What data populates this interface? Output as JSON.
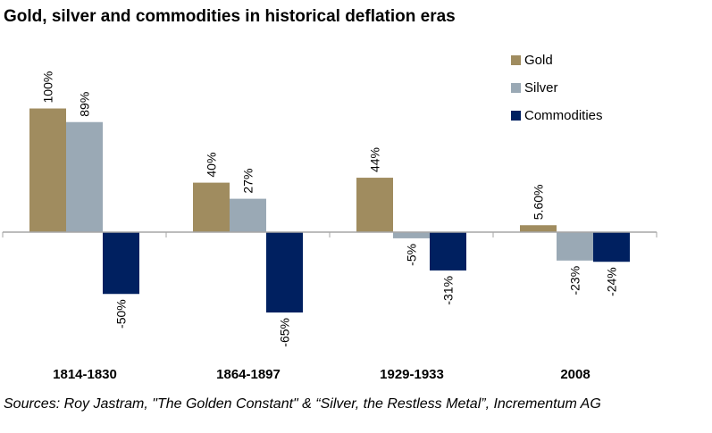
{
  "title": "Gold, silver and commodities in historical deflation eras",
  "source": "Sources: Roy Jastram, \"The Golden Constant\" & “Silver, the Restless Metal”, Incrementum AG",
  "chart_data": {
    "type": "bar",
    "title": "Gold, silver and commodities in historical deflation eras",
    "xlabel": "",
    "ylabel": "",
    "categories": [
      "1814-1830",
      "1864-1897",
      "1929-1933",
      "2008"
    ],
    "series": [
      {
        "name": "Gold",
        "color": "#a08c5f",
        "values": [
          100,
          40,
          44,
          5.6
        ],
        "labels": [
          "100%",
          "40%",
          "44%",
          "5.60%"
        ]
      },
      {
        "name": "Silver",
        "color": "#9aa9b5",
        "values": [
          89,
          27,
          -5,
          -23
        ],
        "labels": [
          "89%",
          "27%",
          "-5%",
          "-23%"
        ]
      },
      {
        "name": "Commodities",
        "color": "#002060",
        "values": [
          -50,
          -65,
          -31,
          -24
        ],
        "labels": [
          "-50%",
          "-65%",
          "-31%",
          "-24%"
        ]
      }
    ],
    "ylim": [
      -70,
      110
    ],
    "grid": false,
    "legend_position": "top-right",
    "data_labels": "rotated-vertical"
  }
}
